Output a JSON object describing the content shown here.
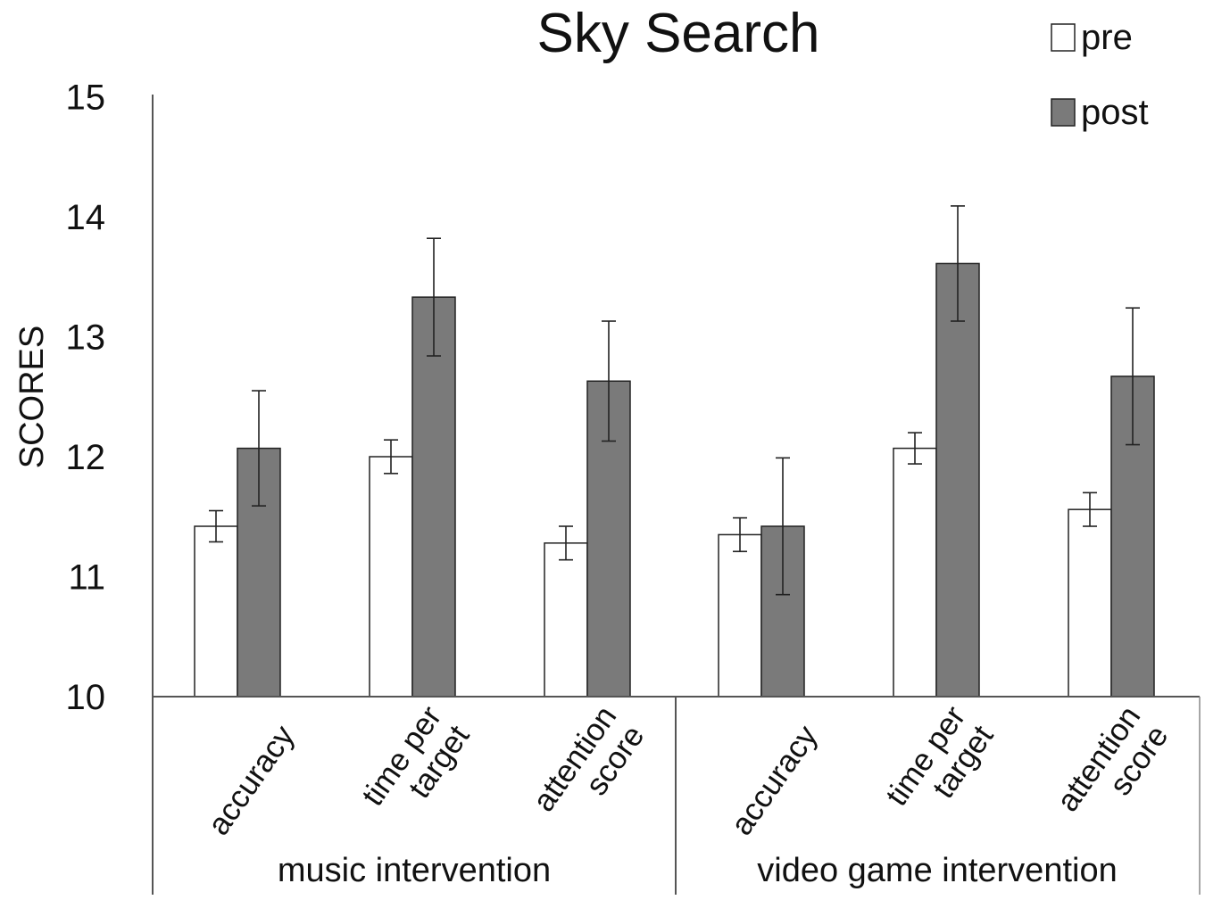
{
  "chart_data": {
    "type": "bar",
    "title": "Sky Search",
    "xlabel": "",
    "ylabel": "SCORES",
    "ylim": [
      10,
      15
    ],
    "yticks": [
      "10",
      "11",
      "12",
      "13",
      "14",
      "15"
    ],
    "grid": false,
    "legend_position": "top-right",
    "groups": [
      {
        "label": "music intervention",
        "categories": [
          [
            "accuracy"
          ],
          [
            "time per",
            "target"
          ],
          [
            "attention",
            "score"
          ]
        ]
      },
      {
        "label": "video game intervention",
        "categories": [
          [
            "accuracy"
          ],
          [
            "time per",
            "target"
          ],
          [
            "attention",
            "score"
          ]
        ]
      }
    ],
    "series": [
      {
        "name": "pre",
        "color": "#ffffff",
        "values": [
          11.42,
          12.0,
          11.28,
          11.35,
          12.07,
          11.56
        ],
        "errors": [
          0.13,
          0.14,
          0.14,
          0.14,
          0.13,
          0.14
        ]
      },
      {
        "name": "post",
        "color": "#7a7a7a",
        "values": [
          12.07,
          13.33,
          12.63,
          11.42,
          13.61,
          12.67
        ],
        "errors": [
          0.48,
          0.49,
          0.5,
          0.57,
          0.48,
          0.57
        ]
      }
    ]
  }
}
